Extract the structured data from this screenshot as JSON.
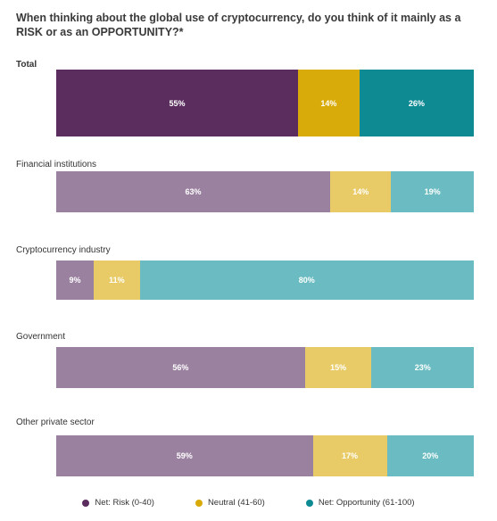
{
  "chart_data": {
    "type": "bar",
    "orientation": "horizontal-stacked-100",
    "title": "When thinking about the global use of cryptocurrency, do you think of it mainly as a RISK or as an OPPORTUNITY?*",
    "categories": [
      "Total",
      "Financial institutions",
      "Cryptocurrency industry",
      "Government",
      "Other private sector"
    ],
    "series": [
      {
        "name": "Net: Risk (0-40)",
        "values": [
          55,
          63,
          9,
          56,
          59
        ],
        "labels": [
          "55%",
          "63%",
          "9%",
          "56%",
          "59%"
        ]
      },
      {
        "name": "Neutral (41-60)",
        "values": [
          14,
          14,
          11,
          15,
          17
        ],
        "labels": [
          "14%",
          "14%",
          "11%",
          "15%",
          "17%"
        ]
      },
      {
        "name": "Net: Opportunity (61-100)",
        "values": [
          26,
          19,
          80,
          23,
          20
        ],
        "labels": [
          "26%",
          "19%",
          "80%",
          "23%",
          "20%"
        ]
      }
    ],
    "colors": {
      "total": [
        "#5a2d5e",
        "#d9ab0a",
        "#0e8a93"
      ],
      "groups": [
        "#9b81a0",
        "#e8cb66",
        "#6bbcc2"
      ],
      "legend": [
        "#5a2d5e",
        "#d9ab0a",
        "#0e8a93"
      ]
    },
    "legend_position": "bottom",
    "grid": false
  }
}
